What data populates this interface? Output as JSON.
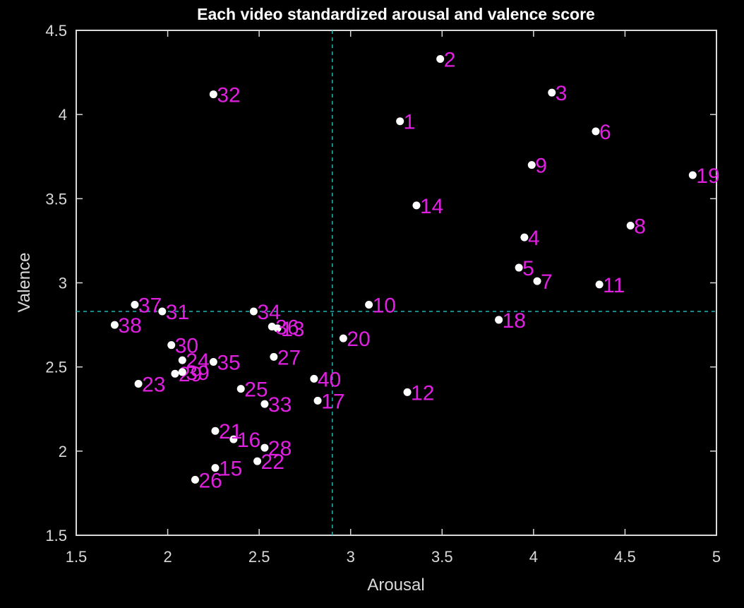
{
  "chart_data": {
    "type": "scatter",
    "title": "Each video standardized arousal and valence score",
    "xlabel": "Arousal",
    "ylabel": "Valence",
    "xlim": [
      1.5,
      5
    ],
    "ylim": [
      1.5,
      4.5
    ],
    "xticks": [
      "1.5",
      "2",
      "2.5",
      "3",
      "3.5",
      "4",
      "4.5",
      "5"
    ],
    "yticks": [
      "1.5",
      "2",
      "2.5",
      "3",
      "3.5",
      "4",
      "4.5"
    ],
    "grid": false,
    "reference_lines": {
      "x": 2.9,
      "y": 2.83,
      "style": "dashed",
      "color": "#2ab0b0"
    },
    "marker_color": "#ffffff",
    "label_color": "#e020e0",
    "background": "#000000",
    "axis_color": "#d9d9d9",
    "points": [
      {
        "label": "1",
        "x": 3.27,
        "y": 3.96
      },
      {
        "label": "2",
        "x": 3.49,
        "y": 4.33
      },
      {
        "label": "3",
        "x": 4.1,
        "y": 4.13
      },
      {
        "label": "4",
        "x": 3.95,
        "y": 3.27
      },
      {
        "label": "5",
        "x": 3.92,
        "y": 3.09
      },
      {
        "label": "6",
        "x": 4.34,
        "y": 3.9
      },
      {
        "label": "7",
        "x": 4.02,
        "y": 3.01
      },
      {
        "label": "8",
        "x": 4.53,
        "y": 3.34
      },
      {
        "label": "9",
        "x": 3.99,
        "y": 3.7
      },
      {
        "label": "10",
        "x": 3.1,
        "y": 2.87
      },
      {
        "label": "11",
        "x": 4.36,
        "y": 2.99
      },
      {
        "label": "12",
        "x": 3.31,
        "y": 2.35
      },
      {
        "label": "13",
        "x": 2.6,
        "y": 2.73
      },
      {
        "label": "14",
        "x": 3.36,
        "y": 3.46
      },
      {
        "label": "15",
        "x": 2.26,
        "y": 1.9
      },
      {
        "label": "16",
        "x": 2.36,
        "y": 2.07
      },
      {
        "label": "17",
        "x": 2.82,
        "y": 2.3
      },
      {
        "label": "18",
        "x": 3.81,
        "y": 2.78
      },
      {
        "label": "19",
        "x": 4.87,
        "y": 3.64
      },
      {
        "label": "20",
        "x": 2.96,
        "y": 2.67
      },
      {
        "label": "21",
        "x": 2.26,
        "y": 2.12
      },
      {
        "label": "22",
        "x": 2.49,
        "y": 1.94
      },
      {
        "label": "23",
        "x": 1.84,
        "y": 2.4
      },
      {
        "label": "24",
        "x": 2.08,
        "y": 2.54
      },
      {
        "label": "25",
        "x": 2.4,
        "y": 2.37
      },
      {
        "label": "26",
        "x": 2.15,
        "y": 1.83
      },
      {
        "label": "27",
        "x": 2.58,
        "y": 2.56
      },
      {
        "label": "28",
        "x": 2.53,
        "y": 2.02
      },
      {
        "label": "29",
        "x": 2.04,
        "y": 2.46
      },
      {
        "label": "30",
        "x": 2.02,
        "y": 2.63
      },
      {
        "label": "31",
        "x": 1.97,
        "y": 2.83
      },
      {
        "label": "32",
        "x": 2.25,
        "y": 4.12
      },
      {
        "label": "33",
        "x": 2.53,
        "y": 2.28
      },
      {
        "label": "34",
        "x": 2.47,
        "y": 2.83
      },
      {
        "label": "35",
        "x": 2.25,
        "y": 2.53
      },
      {
        "label": "36",
        "x": 2.57,
        "y": 2.74
      },
      {
        "label": "37",
        "x": 1.82,
        "y": 2.87
      },
      {
        "label": "38",
        "x": 1.71,
        "y": 2.75
      },
      {
        "label": "39",
        "x": 2.08,
        "y": 2.47
      },
      {
        "label": "40",
        "x": 2.8,
        "y": 2.43
      }
    ]
  }
}
